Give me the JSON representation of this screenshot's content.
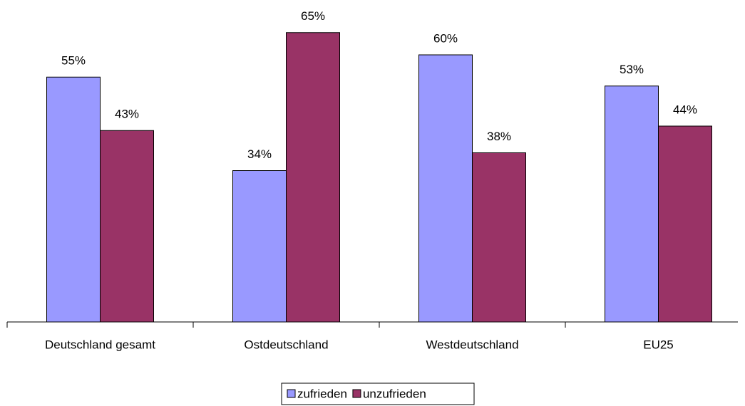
{
  "chart_data": {
    "type": "bar",
    "categories": [
      "Deutschland gesamt",
      "Ostdeutschland",
      "Westdeutschland",
      "EU25"
    ],
    "series": [
      {
        "name": "zufrieden",
        "color": "#9999ff",
        "values": [
          55,
          34,
          60,
          53
        ],
        "value_labels": [
          "55%",
          "34%",
          "60%",
          "53%"
        ]
      },
      {
        "name": "unzufrieden",
        "color": "#993366",
        "values": [
          43,
          65,
          38,
          44
        ],
        "value_labels": [
          "43%",
          "65%",
          "38%",
          "44%"
        ]
      }
    ],
    "ylim": [
      0,
      72
    ],
    "legend": "bottom"
  }
}
